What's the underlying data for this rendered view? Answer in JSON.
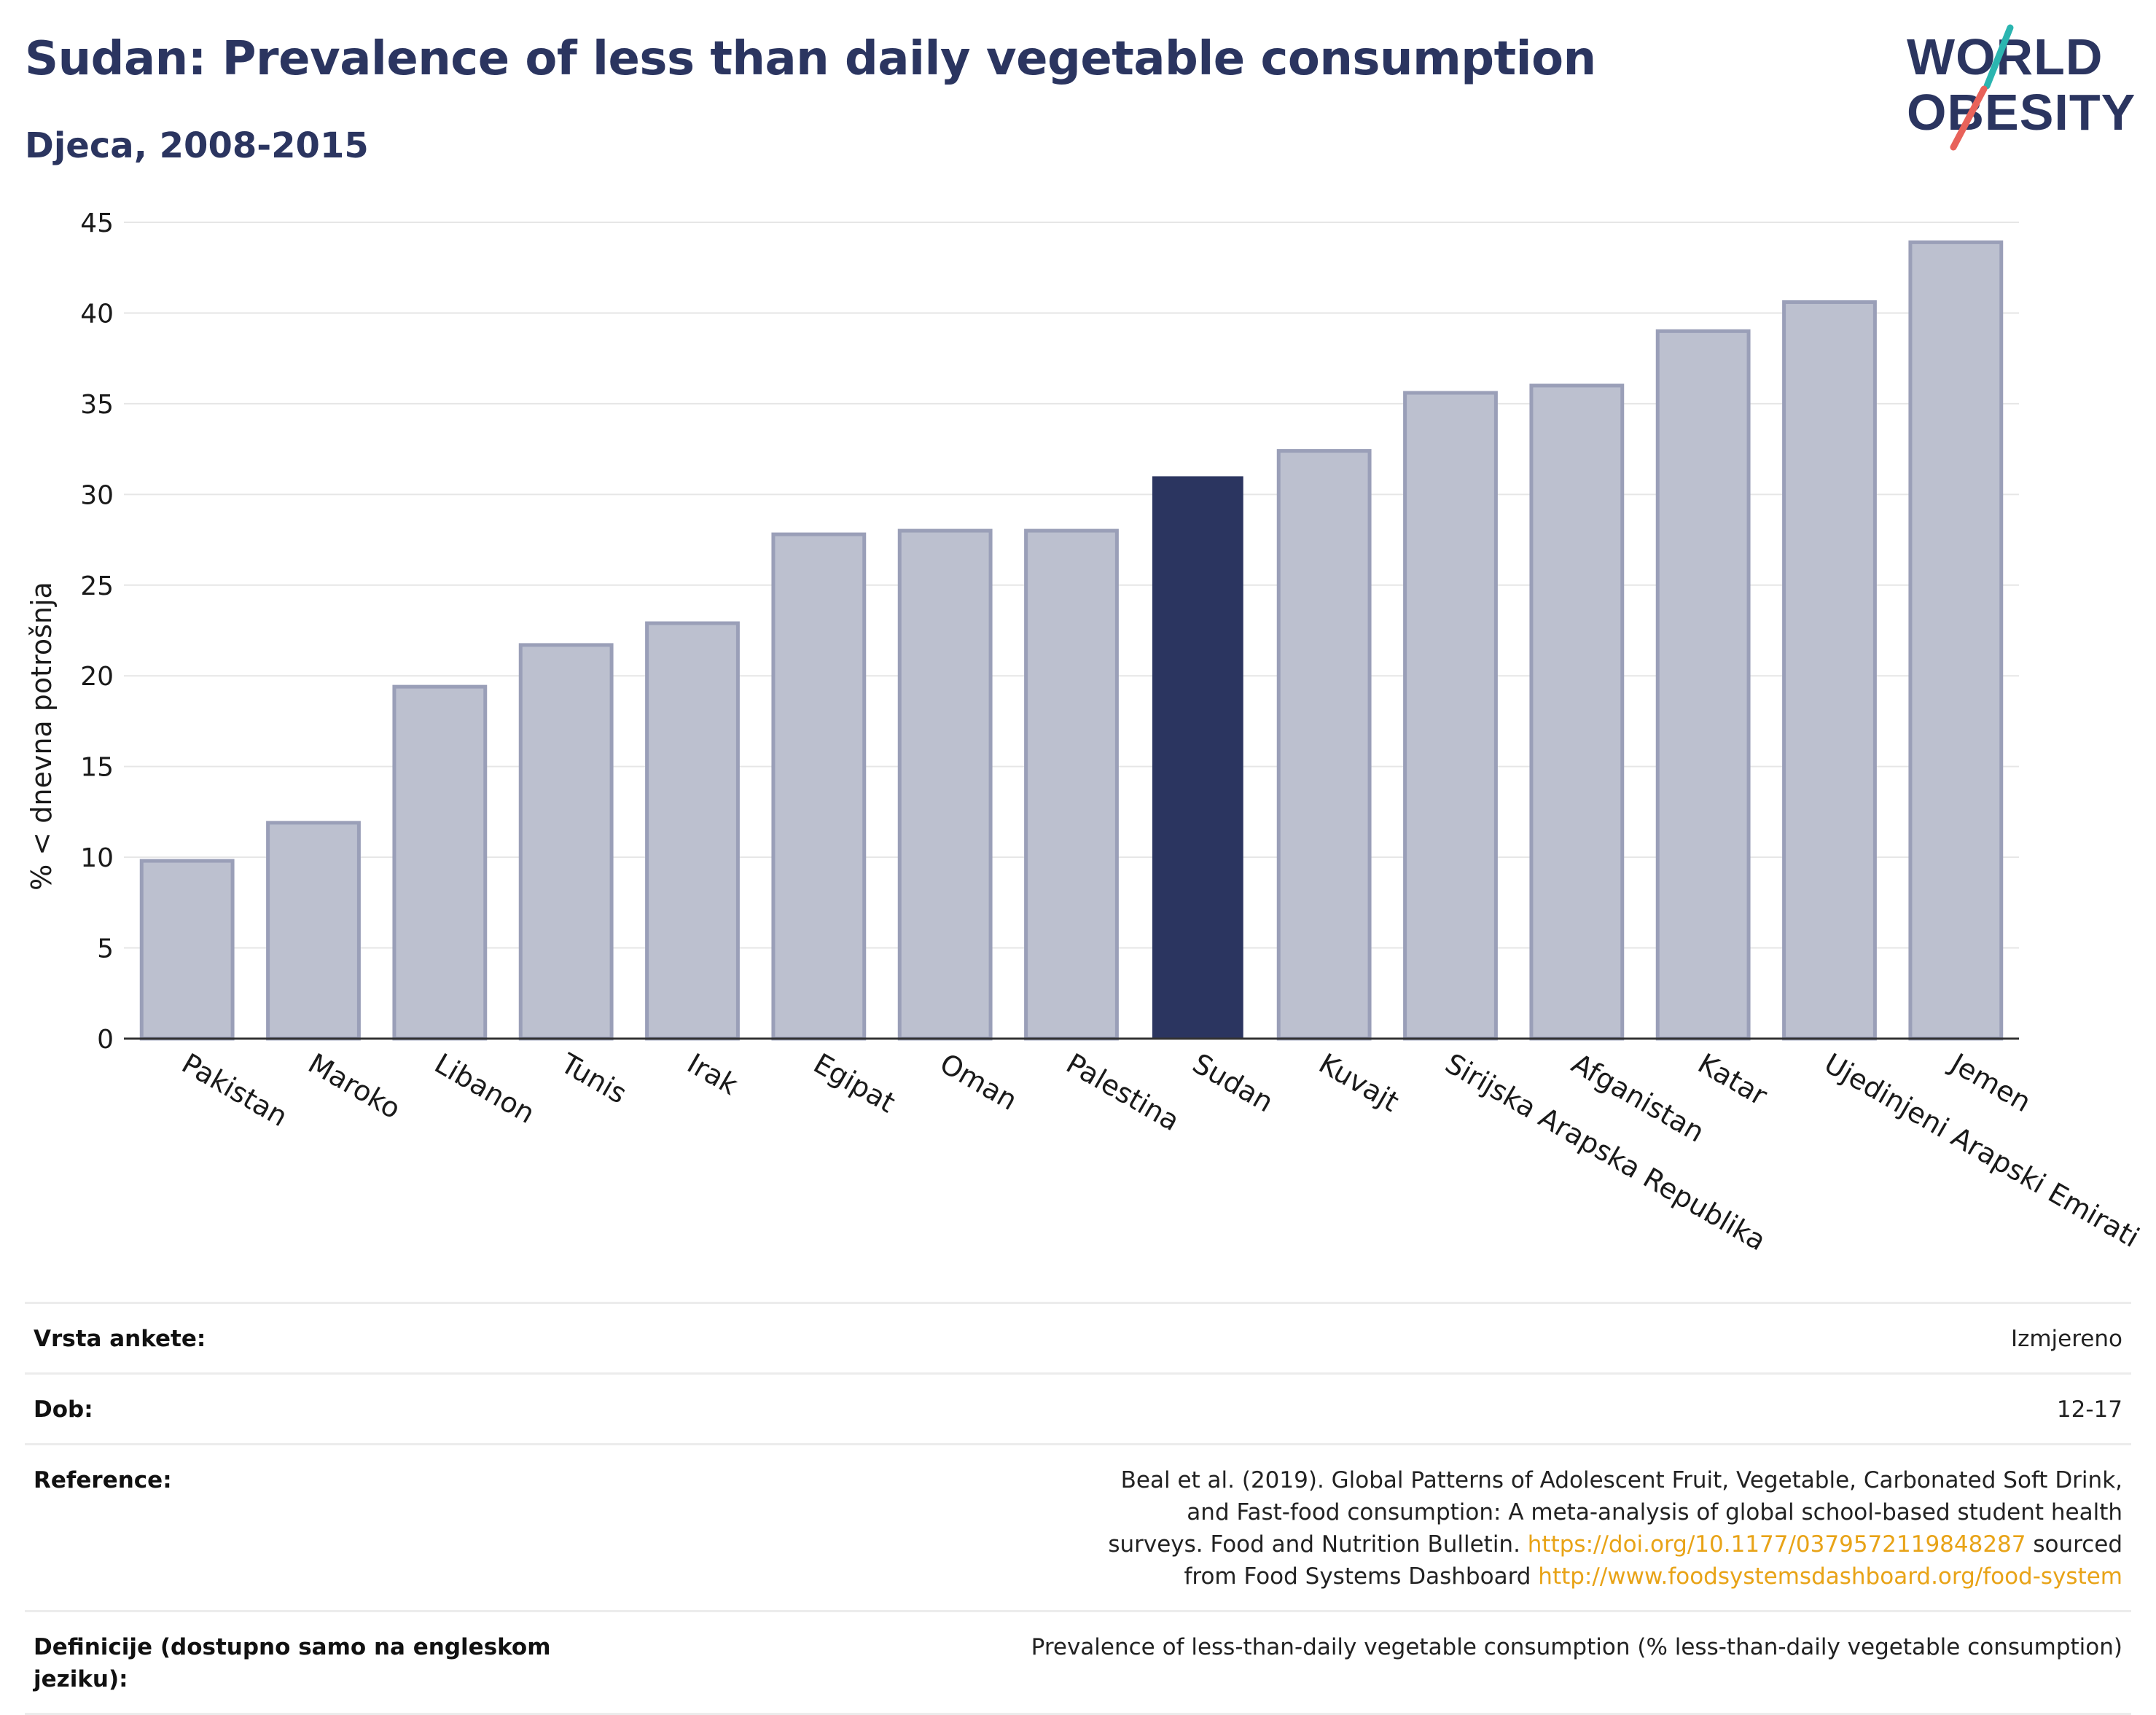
{
  "header": {
    "title": "Sudan: Prevalence of less than daily vegetable consumption",
    "subtitle": "Djeca, 2008-2015"
  },
  "logo": {
    "line1": "WORLD",
    "line2": "OBESITY",
    "slash_color_top": "#2bb5b0",
    "slash_color_bottom": "#e8625a"
  },
  "colors": {
    "highlight": "#2b3560",
    "bar": "#bcc0cf",
    "bar_border": "#9a9fb8",
    "accent_link": "#e8a317"
  },
  "chart_data": {
    "type": "bar",
    "title": "Sudan: Prevalence of less than daily vegetable consumption",
    "subtitle": "Djeca, 2008-2015",
    "xlabel": "",
    "ylabel": "% < dnevna potrošnja",
    "ylim": [
      0,
      45
    ],
    "yticks": [
      0,
      5,
      10,
      15,
      20,
      25,
      30,
      35,
      40,
      45
    ],
    "grid": true,
    "highlight": "Sudan",
    "categories": [
      "Pakistan",
      "Maroko",
      "Libanon",
      "Tunis",
      "Irak",
      "Egipat",
      "Oman",
      "Palestina",
      "Sudan",
      "Kuvajt",
      "Sirijska Arapska Republika",
      "Afganistan",
      "Katar",
      "Ujedinjeni Arapski Emirati",
      "Jemen"
    ],
    "values": [
      9.8,
      11.9,
      19.4,
      21.7,
      22.9,
      27.8,
      28.0,
      28.0,
      31.0,
      32.4,
      35.6,
      36.0,
      39.0,
      40.6,
      43.9
    ]
  },
  "meta": [
    {
      "label": "Vrsta ankete:",
      "value": "Izmjereno"
    },
    {
      "label": "Dob:",
      "value": "12-17"
    },
    {
      "label": "Reference:",
      "value_pre": "Beal et al. (2019). Global Patterns of Adolescent Fruit, Vegetable, Carbonated Soft Drink, and Fast-food consumption: A meta-analysis of global school-based student health surveys. Food and Nutrition Bulletin. ",
      "link1": "https://doi.org/10.1177/0379572119848287",
      "value_mid": " sourced from Food Systems Dashboard ",
      "link2": "http://www.foodsystemsdashboard.org/food-system"
    },
    {
      "label": "Definicije (dostupno samo na engleskom jeziku):",
      "value": "Prevalence of less-than-daily vegetable consumption (% less-than-daily vegetable consumption)"
    }
  ]
}
